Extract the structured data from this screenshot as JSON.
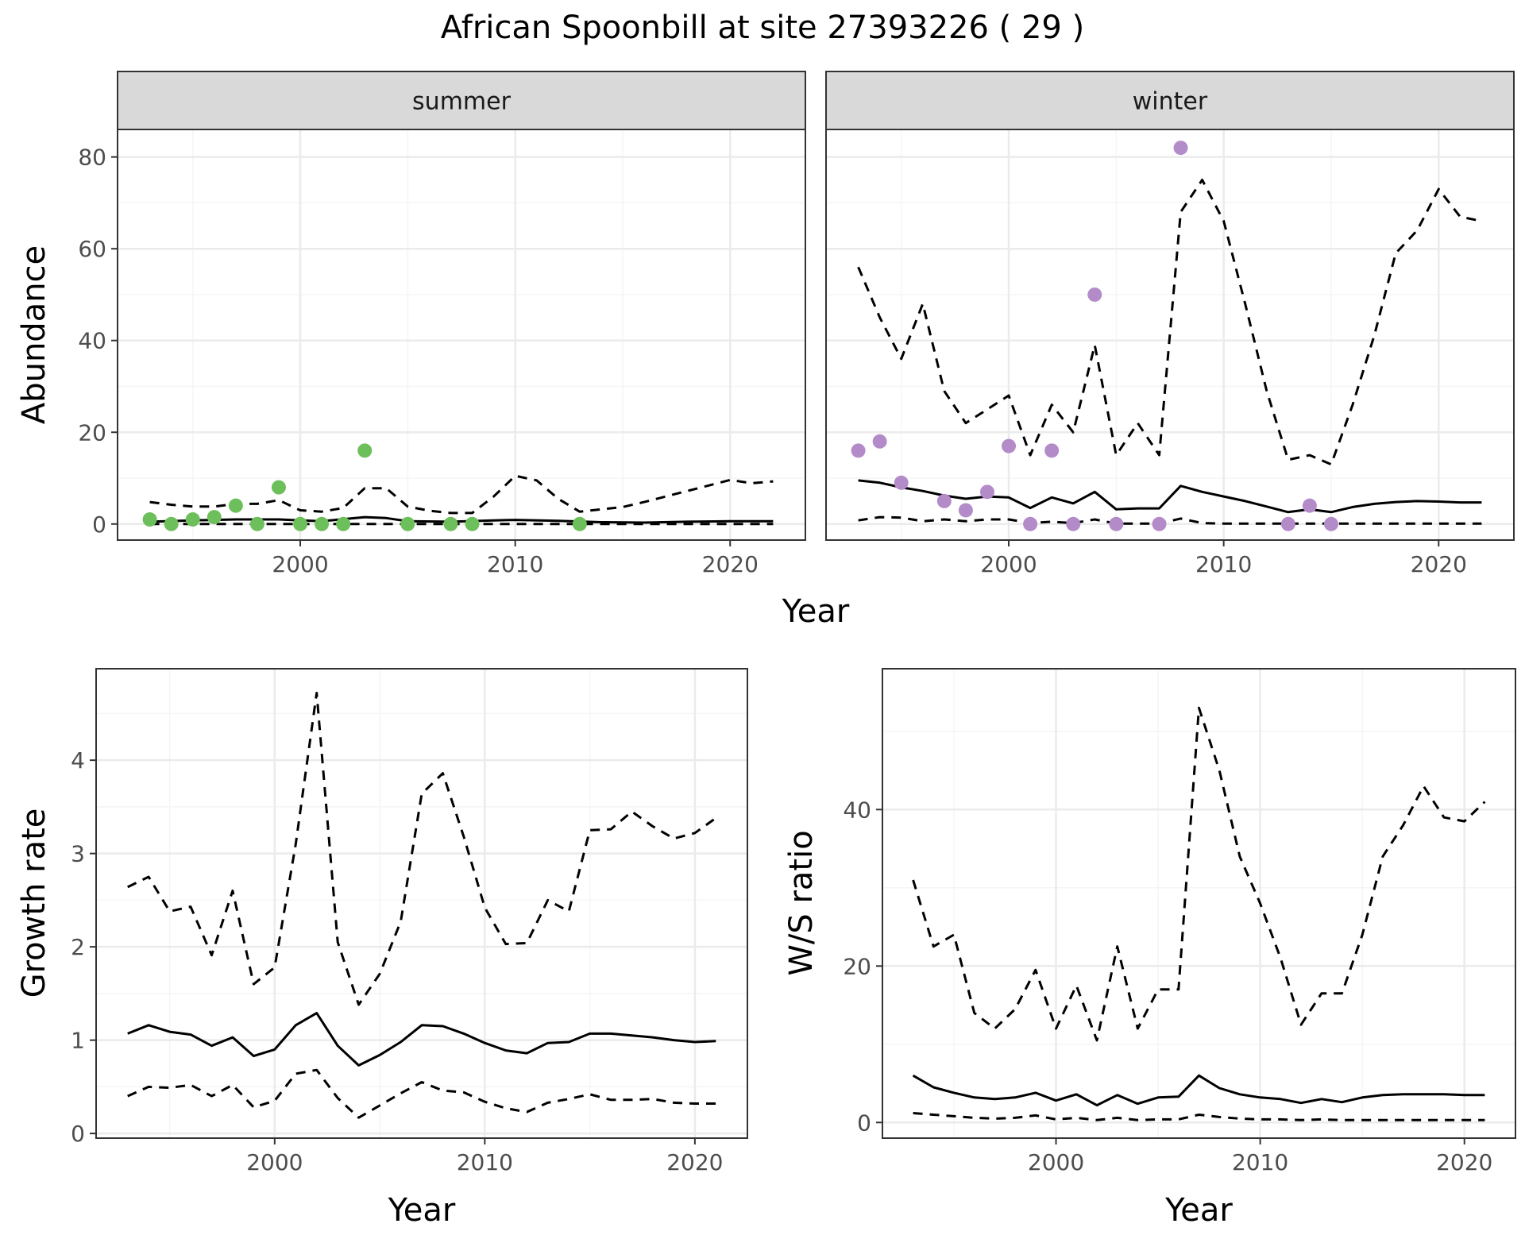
{
  "title": "African Spoonbill at site 27393226 ( 29 )",
  "colors": {
    "summer_points": "#6dbf5b",
    "winter_points": "#b48bc9",
    "line": "#000000",
    "strip_fill": "#d9d9d9",
    "panel_border": "#333333",
    "major_grid": "#ebebeb",
    "minor_grid": "#f5f5f5",
    "tick_text": "#4d4d4d"
  },
  "chart_data": [
    {
      "type": "scatter",
      "facet": "summer",
      "xlabel": "Year",
      "ylabel": "Abundance",
      "xlim": [
        1991.5,
        2023.5
      ],
      "ylim": [
        -3.5,
        86
      ],
      "x_ticks": [
        "2000",
        "2010",
        "2020"
      ],
      "y_ticks": [
        "0",
        "20",
        "40",
        "60",
        "80"
      ],
      "grid": true,
      "points": [
        {
          "x": 1993,
          "y": 1
        },
        {
          "x": 1994,
          "y": 0
        },
        {
          "x": 1995,
          "y": 1
        },
        {
          "x": 1996,
          "y": 1.5
        },
        {
          "x": 1997,
          "y": 4
        },
        {
          "x": 1998,
          "y": 0
        },
        {
          "x": 1999,
          "y": 8
        },
        {
          "x": 2000,
          "y": 0
        },
        {
          "x": 2001,
          "y": 0
        },
        {
          "x": 2002,
          "y": 0
        },
        {
          "x": 2003,
          "y": 16
        },
        {
          "x": 2005,
          "y": 0
        },
        {
          "x": 2007,
          "y": 0
        },
        {
          "x": 2008,
          "y": 0
        },
        {
          "x": 2013,
          "y": 0
        }
      ],
      "lines": [
        {
          "style": "solid",
          "x": [
            1993,
            1995,
            1997,
            1999,
            2001,
            2003,
            2004,
            2005,
            2007,
            2009,
            2010,
            2012,
            2014,
            2016,
            2018,
            2020,
            2022
          ],
          "y": [
            0.5,
            0.8,
            1,
            1,
            0.6,
            1.5,
            1.3,
            0.6,
            0.5,
            0.8,
            0.9,
            0.7,
            0.4,
            0.3,
            0.5,
            0.6,
            0.6
          ]
        },
        {
          "style": "dashed",
          "x": [
            1993,
            1994,
            1995,
            1996,
            1997,
            1998,
            1999,
            2000,
            2001,
            2002,
            2003,
            2004,
            2005,
            2006,
            2007,
            2008,
            2009,
            2010,
            2011,
            2012,
            2013,
            2014,
            2015,
            2016,
            2017,
            2018,
            2019,
            2020,
            2021,
            2022
          ],
          "y": [
            4.8,
            4.2,
            3.8,
            3.8,
            4.4,
            4.4,
            5.2,
            3.0,
            2.7,
            3.5,
            7.8,
            7.8,
            3.8,
            2.9,
            2.4,
            2.4,
            6.0,
            10.5,
            9.5,
            5.5,
            2.7,
            3.2,
            3.7,
            4.8,
            6.0,
            7.2,
            8.4,
            9.6,
            8.9,
            9.3
          ]
        },
        {
          "style": "dashed",
          "x": [
            1993,
            2022
          ],
          "y": [
            0,
            0
          ]
        }
      ]
    },
    {
      "type": "scatter",
      "facet": "winter",
      "xlabel": "Year",
      "ylabel": "Abundance",
      "xlim": [
        1991.5,
        2023.5
      ],
      "ylim": [
        -3.5,
        86
      ],
      "x_ticks": [
        "2000",
        "2010",
        "2020"
      ],
      "points": [
        {
          "x": 1993,
          "y": 16
        },
        {
          "x": 1994,
          "y": 18
        },
        {
          "x": 1995,
          "y": 9
        },
        {
          "x": 1997,
          "y": 5
        },
        {
          "x": 1998,
          "y": 3
        },
        {
          "x": 1999,
          "y": 7
        },
        {
          "x": 2000,
          "y": 17
        },
        {
          "x": 2001,
          "y": 0
        },
        {
          "x": 2002,
          "y": 16
        },
        {
          "x": 2003,
          "y": 0
        },
        {
          "x": 2004,
          "y": 50
        },
        {
          "x": 2005,
          "y": 0
        },
        {
          "x": 2007,
          "y": 0
        },
        {
          "x": 2008,
          "y": 82
        },
        {
          "x": 2013,
          "y": 0
        },
        {
          "x": 2014,
          "y": 4
        },
        {
          "x": 2015,
          "y": 0
        }
      ],
      "lines": [
        {
          "style": "solid",
          "x": [
            1993,
            1994,
            1995,
            1996,
            1997,
            1998,
            1999,
            2000,
            2001,
            2002,
            2003,
            2004,
            2005,
            2006,
            2007,
            2008,
            2009,
            2010,
            2011,
            2012,
            2013,
            2014,
            2015,
            2016,
            2017,
            2018,
            2019,
            2020,
            2021,
            2022
          ],
          "y": [
            9.5,
            9.0,
            8.0,
            7.2,
            6.2,
            5.5,
            6.0,
            5.8,
            3.5,
            5.8,
            4.5,
            7.0,
            3.2,
            3.4,
            3.4,
            8.3,
            7.0,
            6.0,
            5.0,
            3.8,
            2.6,
            3.2,
            2.6,
            3.7,
            4.4,
            4.8,
            5.0,
            4.9,
            4.7,
            4.7
          ]
        },
        {
          "style": "dashed",
          "x": [
            1993,
            1994,
            1995,
            1996,
            1997,
            1998,
            1999,
            2000,
            2001,
            2002,
            2003,
            2004,
            2005,
            2006,
            2007,
            2008,
            2009,
            2010,
            2011,
            2012,
            2013,
            2014,
            2015,
            2016,
            2017,
            2018,
            2019,
            2020,
            2021,
            2022
          ],
          "y": [
            56,
            45,
            36,
            48,
            29,
            22,
            25,
            28,
            15,
            26,
            20,
            39,
            15,
            22,
            15,
            68,
            75,
            66,
            48,
            29,
            14,
            15,
            13,
            26,
            41,
            59,
            64,
            73,
            67,
            66
          ]
        },
        {
          "style": "dashed",
          "x": [
            1993,
            1994,
            1995,
            1996,
            1997,
            1998,
            1999,
            2000,
            2001,
            2002,
            2003,
            2004,
            2005,
            2006,
            2007,
            2008,
            2009,
            2010,
            2012,
            2014,
            2016,
            2018,
            2020,
            2022
          ],
          "y": [
            0.8,
            1.5,
            1.4,
            0.6,
            1.0,
            0.6,
            1.0,
            1.0,
            0.2,
            0.5,
            0.2,
            1.0,
            0.1,
            0.1,
            0.1,
            1.2,
            0.2,
            0.1,
            0.1,
            0.1,
            0.1,
            0.1,
            0.1,
            0.1
          ]
        }
      ]
    },
    {
      "type": "line",
      "xlabel": "Year",
      "ylabel": "Growth rate",
      "xlim": [
        1991.5,
        2022.5
      ],
      "ylim": [
        -0.05,
        4.98
      ],
      "x_ticks": [
        "2000",
        "2010",
        "2020"
      ],
      "y_ticks": [
        "0",
        "1",
        "2",
        "3",
        "4"
      ],
      "lines": [
        {
          "style": "solid",
          "x": [
            1993,
            1994,
            1995,
            1996,
            1997,
            1998,
            1999,
            2000,
            2001,
            2002,
            2003,
            2004,
            2005,
            2006,
            2007,
            2008,
            2009,
            2010,
            2011,
            2012,
            2013,
            2014,
            2015,
            2016,
            2017,
            2018,
            2019,
            2020,
            2021
          ],
          "y": [
            1.07,
            1.16,
            1.09,
            1.06,
            0.94,
            1.03,
            0.83,
            0.9,
            1.16,
            1.29,
            0.94,
            0.73,
            0.84,
            0.98,
            1.16,
            1.15,
            1.07,
            0.97,
            0.89,
            0.86,
            0.97,
            0.98,
            1.07,
            1.07,
            1.05,
            1.03,
            1.0,
            0.98,
            0.99
          ]
        },
        {
          "style": "dashed",
          "x": [
            1993,
            1994,
            1995,
            1996,
            1997,
            1998,
            1999,
            2000,
            2001,
            2002,
            2003,
            2004,
            2005,
            2006,
            2007,
            2008,
            2009,
            2010,
            2011,
            2012,
            2013,
            2014,
            2015,
            2016,
            2017,
            2018,
            2019,
            2020,
            2021
          ],
          "y": [
            2.64,
            2.75,
            2.38,
            2.43,
            1.91,
            2.6,
            1.6,
            1.78,
            3.1,
            4.72,
            2.05,
            1.38,
            1.71,
            2.27,
            3.64,
            3.86,
            3.18,
            2.42,
            2.03,
            2.04,
            2.5,
            2.38,
            3.25,
            3.26,
            3.45,
            3.29,
            3.16,
            3.22,
            3.38
          ]
        },
        {
          "style": "dashed",
          "x": [
            1993,
            1994,
            1995,
            1996,
            1997,
            1998,
            1999,
            2000,
            2001,
            2002,
            2003,
            2004,
            2005,
            2006,
            2007,
            2008,
            2009,
            2010,
            2011,
            2012,
            2013,
            2014,
            2015,
            2016,
            2017,
            2018,
            2019,
            2020,
            2021
          ],
          "y": [
            0.4,
            0.5,
            0.49,
            0.52,
            0.4,
            0.52,
            0.28,
            0.35,
            0.64,
            0.68,
            0.38,
            0.17,
            0.3,
            0.43,
            0.55,
            0.46,
            0.44,
            0.34,
            0.27,
            0.23,
            0.33,
            0.37,
            0.42,
            0.36,
            0.36,
            0.37,
            0.33,
            0.32,
            0.32
          ]
        }
      ]
    },
    {
      "type": "line",
      "xlabel": "Year",
      "ylabel": "W/S ratio",
      "xlim": [
        1991.5,
        2022.5
      ],
      "ylim": [
        -2,
        58
      ],
      "x_ticks": [
        "2000",
        "2010",
        "2020"
      ],
      "y_ticks": [
        "0",
        "20",
        "40"
      ],
      "lines": [
        {
          "style": "solid",
          "x": [
            1993,
            1994,
            1995,
            1996,
            1997,
            1998,
            1999,
            2000,
            2001,
            2002,
            2003,
            2004,
            2005,
            2006,
            2007,
            2008,
            2009,
            2010,
            2011,
            2012,
            2013,
            2014,
            2015,
            2016,
            2017,
            2018,
            2019,
            2020,
            2021
          ],
          "y": [
            6.0,
            4.5,
            3.8,
            3.2,
            3.0,
            3.2,
            3.8,
            2.8,
            3.6,
            2.2,
            3.5,
            2.4,
            3.2,
            3.3,
            6.0,
            4.4,
            3.6,
            3.2,
            3.0,
            2.5,
            3.0,
            2.6,
            3.2,
            3.5,
            3.6,
            3.6,
            3.6,
            3.5,
            3.5
          ]
        },
        {
          "style": "dashed",
          "x": [
            1993,
            1994,
            1995,
            1996,
            1997,
            1998,
            1999,
            2000,
            2001,
            2002,
            2003,
            2004,
            2005,
            2006,
            2007,
            2008,
            2009,
            2010,
            2011,
            2012,
            2013,
            2014,
            2015,
            2016,
            2017,
            2018,
            2019,
            2020,
            2021
          ],
          "y": [
            31,
            22.5,
            24,
            14,
            12,
            14.5,
            19.5,
            12,
            17.5,
            10.5,
            22.5,
            12,
            17,
            17,
            53,
            45,
            34,
            28,
            21,
            12.5,
            16.5,
            16.5,
            24,
            34,
            38,
            43,
            39,
            38.5,
            41
          ]
        },
        {
          "style": "dashed",
          "x": [
            1993,
            1994,
            1995,
            1996,
            1997,
            1998,
            1999,
            2000,
            2001,
            2002,
            2003,
            2004,
            2005,
            2006,
            2007,
            2008,
            2009,
            2010,
            2011,
            2012,
            2013,
            2014,
            2015,
            2016,
            2017,
            2018,
            2019,
            2020,
            2021
          ],
          "y": [
            1.2,
            1.0,
            0.8,
            0.6,
            0.5,
            0.6,
            0.9,
            0.4,
            0.6,
            0.3,
            0.6,
            0.3,
            0.4,
            0.4,
            1.0,
            0.7,
            0.5,
            0.4,
            0.4,
            0.3,
            0.4,
            0.3,
            0.3,
            0.3,
            0.3,
            0.3,
            0.3,
            0.3,
            0.3
          ]
        }
      ]
    }
  ]
}
